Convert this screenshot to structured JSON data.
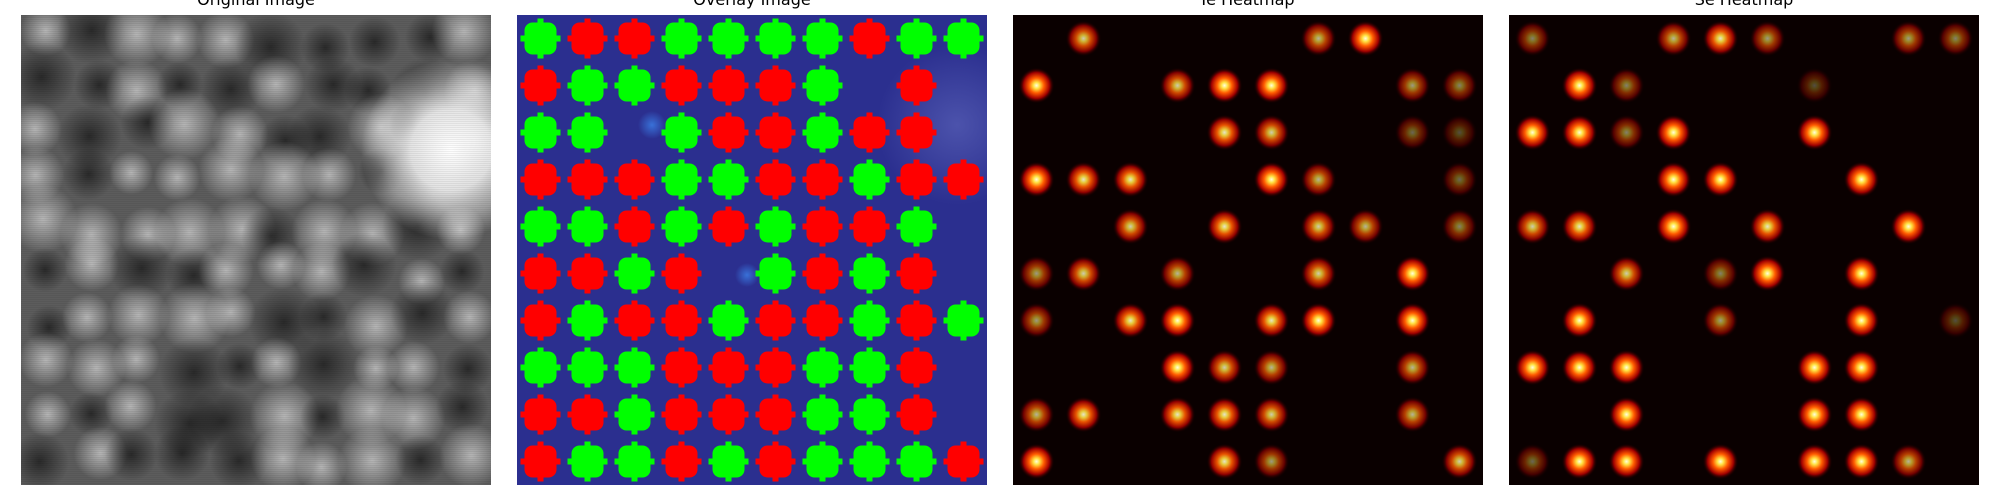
{
  "panels": [
    {
      "title": "Original Image"
    },
    {
      "title": "Overlay Image"
    },
    {
      "title": "Ie Heatmap"
    },
    {
      "title": "Se Heatmap"
    }
  ],
  "colors": {
    "overlay_background": "#2b2f8f",
    "marker_red": "#ff0000",
    "marker_green": "#00ff00",
    "heatmap_background": "#0a0000"
  },
  "overlay_markers": [
    {
      "r": 0,
      "c": 0,
      "cls": "green"
    },
    {
      "r": 0,
      "c": 1,
      "cls": "red"
    },
    {
      "r": 0,
      "c": 2,
      "cls": "red"
    },
    {
      "r": 0,
      "c": 3,
      "cls": "green"
    },
    {
      "r": 0,
      "c": 4,
      "cls": "green"
    },
    {
      "r": 0,
      "c": 5,
      "cls": "green"
    },
    {
      "r": 0,
      "c": 6,
      "cls": "green"
    },
    {
      "r": 0,
      "c": 7,
      "cls": "red"
    },
    {
      "r": 0,
      "c": 8,
      "cls": "green"
    },
    {
      "r": 0,
      "c": 9,
      "cls": "green"
    },
    {
      "r": 1,
      "c": 0,
      "cls": "red"
    },
    {
      "r": 1,
      "c": 1,
      "cls": "green"
    },
    {
      "r": 1,
      "c": 2,
      "cls": "green"
    },
    {
      "r": 1,
      "c": 3,
      "cls": "red"
    },
    {
      "r": 1,
      "c": 4,
      "cls": "red"
    },
    {
      "r": 1,
      "c": 5,
      "cls": "red"
    },
    {
      "r": 1,
      "c": 6,
      "cls": "green"
    },
    {
      "r": 1,
      "c": 8,
      "cls": "red"
    },
    {
      "r": 2,
      "c": 0,
      "cls": "green"
    },
    {
      "r": 2,
      "c": 1,
      "cls": "green"
    },
    {
      "r": 2,
      "c": 3,
      "cls": "green"
    },
    {
      "r": 2,
      "c": 4,
      "cls": "red"
    },
    {
      "r": 2,
      "c": 5,
      "cls": "red"
    },
    {
      "r": 2,
      "c": 6,
      "cls": "green"
    },
    {
      "r": 2,
      "c": 7,
      "cls": "red"
    },
    {
      "r": 2,
      "c": 8,
      "cls": "red"
    },
    {
      "r": 3,
      "c": 0,
      "cls": "red"
    },
    {
      "r": 3,
      "c": 1,
      "cls": "red"
    },
    {
      "r": 3,
      "c": 2,
      "cls": "red"
    },
    {
      "r": 3,
      "c": 3,
      "cls": "green"
    },
    {
      "r": 3,
      "c": 4,
      "cls": "green"
    },
    {
      "r": 3,
      "c": 5,
      "cls": "red"
    },
    {
      "r": 3,
      "c": 6,
      "cls": "red"
    },
    {
      "r": 3,
      "c": 7,
      "cls": "green"
    },
    {
      "r": 3,
      "c": 8,
      "cls": "red"
    },
    {
      "r": 3,
      "c": 9,
      "cls": "red"
    },
    {
      "r": 4,
      "c": 0,
      "cls": "green"
    },
    {
      "r": 4,
      "c": 1,
      "cls": "green"
    },
    {
      "r": 4,
      "c": 2,
      "cls": "red"
    },
    {
      "r": 4,
      "c": 3,
      "cls": "green"
    },
    {
      "r": 4,
      "c": 4,
      "cls": "red"
    },
    {
      "r": 4,
      "c": 5,
      "cls": "green"
    },
    {
      "r": 4,
      "c": 6,
      "cls": "red"
    },
    {
      "r": 4,
      "c": 7,
      "cls": "red"
    },
    {
      "r": 4,
      "c": 8,
      "cls": "green"
    },
    {
      "r": 5,
      "c": 0,
      "cls": "red"
    },
    {
      "r": 5,
      "c": 1,
      "cls": "red"
    },
    {
      "r": 5,
      "c": 2,
      "cls": "green"
    },
    {
      "r": 5,
      "c": 3,
      "cls": "red"
    },
    {
      "r": 5,
      "c": 5,
      "cls": "green"
    },
    {
      "r": 5,
      "c": 6,
      "cls": "red"
    },
    {
      "r": 5,
      "c": 7,
      "cls": "green"
    },
    {
      "r": 5,
      "c": 8,
      "cls": "red"
    },
    {
      "r": 6,
      "c": 0,
      "cls": "red"
    },
    {
      "r": 6,
      "c": 1,
      "cls": "green"
    },
    {
      "r": 6,
      "c": 2,
      "cls": "red"
    },
    {
      "r": 6,
      "c": 3,
      "cls": "red"
    },
    {
      "r": 6,
      "c": 4,
      "cls": "green"
    },
    {
      "r": 6,
      "c": 5,
      "cls": "red"
    },
    {
      "r": 6,
      "c": 6,
      "cls": "red"
    },
    {
      "r": 6,
      "c": 7,
      "cls": "green"
    },
    {
      "r": 6,
      "c": 8,
      "cls": "red"
    },
    {
      "r": 6,
      "c": 9,
      "cls": "green"
    },
    {
      "r": 7,
      "c": 0,
      "cls": "green"
    },
    {
      "r": 7,
      "c": 1,
      "cls": "green"
    },
    {
      "r": 7,
      "c": 2,
      "cls": "green"
    },
    {
      "r": 7,
      "c": 3,
      "cls": "red"
    },
    {
      "r": 7,
      "c": 4,
      "cls": "red"
    },
    {
      "r": 7,
      "c": 5,
      "cls": "red"
    },
    {
      "r": 7,
      "c": 6,
      "cls": "green"
    },
    {
      "r": 7,
      "c": 7,
      "cls": "green"
    },
    {
      "r": 7,
      "c": 8,
      "cls": "red"
    },
    {
      "r": 8,
      "c": 0,
      "cls": "red"
    },
    {
      "r": 8,
      "c": 1,
      "cls": "red"
    },
    {
      "r": 8,
      "c": 2,
      "cls": "green"
    },
    {
      "r": 8,
      "c": 3,
      "cls": "red"
    },
    {
      "r": 8,
      "c": 4,
      "cls": "red"
    },
    {
      "r": 8,
      "c": 5,
      "cls": "red"
    },
    {
      "r": 8,
      "c": 6,
      "cls": "green"
    },
    {
      "r": 8,
      "c": 7,
      "cls": "green"
    },
    {
      "r": 8,
      "c": 8,
      "cls": "red"
    },
    {
      "r": 9,
      "c": 0,
      "cls": "red"
    },
    {
      "r": 9,
      "c": 1,
      "cls": "green"
    },
    {
      "r": 9,
      "c": 2,
      "cls": "green"
    },
    {
      "r": 9,
      "c": 3,
      "cls": "red"
    },
    {
      "r": 9,
      "c": 4,
      "cls": "green"
    },
    {
      "r": 9,
      "c": 5,
      "cls": "red"
    },
    {
      "r": 9,
      "c": 6,
      "cls": "green"
    },
    {
      "r": 9,
      "c": 7,
      "cls": "green"
    },
    {
      "r": 9,
      "c": 8,
      "cls": "green"
    },
    {
      "r": 9,
      "c": 9,
      "cls": "red"
    }
  ],
  "ie_peaks": [
    {
      "r": 0,
      "c": 1,
      "i": 0.8
    },
    {
      "r": 0,
      "c": 6,
      "i": 0.7
    },
    {
      "r": 0,
      "c": 7,
      "i": 1.0
    },
    {
      "r": 1,
      "c": 0,
      "i": 1.0
    },
    {
      "r": 1,
      "c": 3,
      "i": 0.8
    },
    {
      "r": 1,
      "c": 4,
      "i": 1.0
    },
    {
      "r": 1,
      "c": 5,
      "i": 1.0
    },
    {
      "r": 1,
      "c": 8,
      "i": 0.6
    },
    {
      "r": 1,
      "c": 9,
      "i": 0.5
    },
    {
      "r": 2,
      "c": 4,
      "i": 0.9
    },
    {
      "r": 2,
      "c": 5,
      "i": 0.8
    },
    {
      "r": 2,
      "c": 8,
      "i": 0.4
    },
    {
      "r": 2,
      "c": 9,
      "i": 0.3
    },
    {
      "r": 3,
      "c": 0,
      "i": 1.0
    },
    {
      "r": 3,
      "c": 1,
      "i": 0.9
    },
    {
      "r": 3,
      "c": 2,
      "i": 0.9
    },
    {
      "r": 3,
      "c": 5,
      "i": 1.0
    },
    {
      "r": 3,
      "c": 6,
      "i": 0.7
    },
    {
      "r": 3,
      "c": 9,
      "i": 0.4
    },
    {
      "r": 4,
      "c": 2,
      "i": 0.8
    },
    {
      "r": 4,
      "c": 4,
      "i": 0.9
    },
    {
      "r": 4,
      "c": 6,
      "i": 0.8
    },
    {
      "r": 4,
      "c": 7,
      "i": 0.7
    },
    {
      "r": 4,
      "c": 9,
      "i": 0.5
    },
    {
      "r": 5,
      "c": 0,
      "i": 0.6
    },
    {
      "r": 5,
      "c": 1,
      "i": 0.8
    },
    {
      "r": 5,
      "c": 3,
      "i": 0.7
    },
    {
      "r": 5,
      "c": 6,
      "i": 0.8
    },
    {
      "r": 5,
      "c": 8,
      "i": 1.0
    },
    {
      "r": 6,
      "c": 0,
      "i": 0.6
    },
    {
      "r": 6,
      "c": 2,
      "i": 0.9
    },
    {
      "r": 6,
      "c": 3,
      "i": 1.0
    },
    {
      "r": 6,
      "c": 5,
      "i": 0.9
    },
    {
      "r": 6,
      "c": 6,
      "i": 1.0
    },
    {
      "r": 6,
      "c": 8,
      "i": 1.0
    },
    {
      "r": 7,
      "c": 3,
      "i": 1.0
    },
    {
      "r": 7,
      "c": 4,
      "i": 0.8
    },
    {
      "r": 7,
      "c": 5,
      "i": 0.7
    },
    {
      "r": 7,
      "c": 8,
      "i": 0.7
    },
    {
      "r": 8,
      "c": 0,
      "i": 0.7
    },
    {
      "r": 8,
      "c": 1,
      "i": 0.9
    },
    {
      "r": 8,
      "c": 3,
      "i": 0.9
    },
    {
      "r": 8,
      "c": 4,
      "i": 0.9
    },
    {
      "r": 8,
      "c": 5,
      "i": 0.8
    },
    {
      "r": 8,
      "c": 8,
      "i": 0.7
    },
    {
      "r": 9,
      "c": 0,
      "i": 1.0
    },
    {
      "r": 9,
      "c": 4,
      "i": 0.9
    },
    {
      "r": 9,
      "c": 5,
      "i": 0.6
    },
    {
      "r": 9,
      "c": 9,
      "i": 0.8
    }
  ],
  "se_peaks": [
    {
      "r": 0,
      "c": 0,
      "i": 0.5
    },
    {
      "r": 0,
      "c": 3,
      "i": 0.7
    },
    {
      "r": 0,
      "c": 4,
      "i": 0.9
    },
    {
      "r": 0,
      "c": 5,
      "i": 0.6
    },
    {
      "r": 0,
      "c": 8,
      "i": 0.6
    },
    {
      "r": 0,
      "c": 9,
      "i": 0.5
    },
    {
      "r": 1,
      "c": 1,
      "i": 1.0
    },
    {
      "r": 1,
      "c": 2,
      "i": 0.5
    },
    {
      "r": 1,
      "c": 6,
      "i": 0.3
    },
    {
      "r": 2,
      "c": 0,
      "i": 1.0
    },
    {
      "r": 2,
      "c": 1,
      "i": 1.0
    },
    {
      "r": 2,
      "c": 2,
      "i": 0.5
    },
    {
      "r": 2,
      "c": 3,
      "i": 1.0
    },
    {
      "r": 2,
      "c": 6,
      "i": 1.0
    },
    {
      "r": 3,
      "c": 3,
      "i": 1.0
    },
    {
      "r": 3,
      "c": 4,
      "i": 1.0
    },
    {
      "r": 3,
      "c": 7,
      "i": 1.0
    },
    {
      "r": 4,
      "c": 0,
      "i": 0.8
    },
    {
      "r": 4,
      "c": 1,
      "i": 0.9
    },
    {
      "r": 4,
      "c": 3,
      "i": 1.0
    },
    {
      "r": 4,
      "c": 5,
      "i": 0.9
    },
    {
      "r": 4,
      "c": 8,
      "i": 1.0
    },
    {
      "r": 5,
      "c": 2,
      "i": 0.8
    },
    {
      "r": 5,
      "c": 4,
      "i": 0.5
    },
    {
      "r": 5,
      "c": 5,
      "i": 1.0
    },
    {
      "r": 5,
      "c": 7,
      "i": 1.0
    },
    {
      "r": 6,
      "c": 1,
      "i": 1.0
    },
    {
      "r": 6,
      "c": 4,
      "i": 0.6
    },
    {
      "r": 6,
      "c": 7,
      "i": 1.0
    },
    {
      "r": 6,
      "c": 9,
      "i": 0.3
    },
    {
      "r": 7,
      "c": 0,
      "i": 1.0
    },
    {
      "r": 7,
      "c": 1,
      "i": 1.0
    },
    {
      "r": 7,
      "c": 2,
      "i": 1.0
    },
    {
      "r": 7,
      "c": 6,
      "i": 1.0
    },
    {
      "r": 7,
      "c": 7,
      "i": 1.0
    },
    {
      "r": 8,
      "c": 2,
      "i": 1.0
    },
    {
      "r": 8,
      "c": 6,
      "i": 1.0
    },
    {
      "r": 8,
      "c": 7,
      "i": 1.0
    },
    {
      "r": 9,
      "c": 0,
      "i": 0.4
    },
    {
      "r": 9,
      "c": 1,
      "i": 1.0
    },
    {
      "r": 9,
      "c": 2,
      "i": 1.0
    },
    {
      "r": 9,
      "c": 4,
      "i": 1.0
    },
    {
      "r": 9,
      "c": 6,
      "i": 1.0
    },
    {
      "r": 9,
      "c": 7,
      "i": 1.0
    },
    {
      "r": 9,
      "c": 8,
      "i": 0.7
    }
  ]
}
